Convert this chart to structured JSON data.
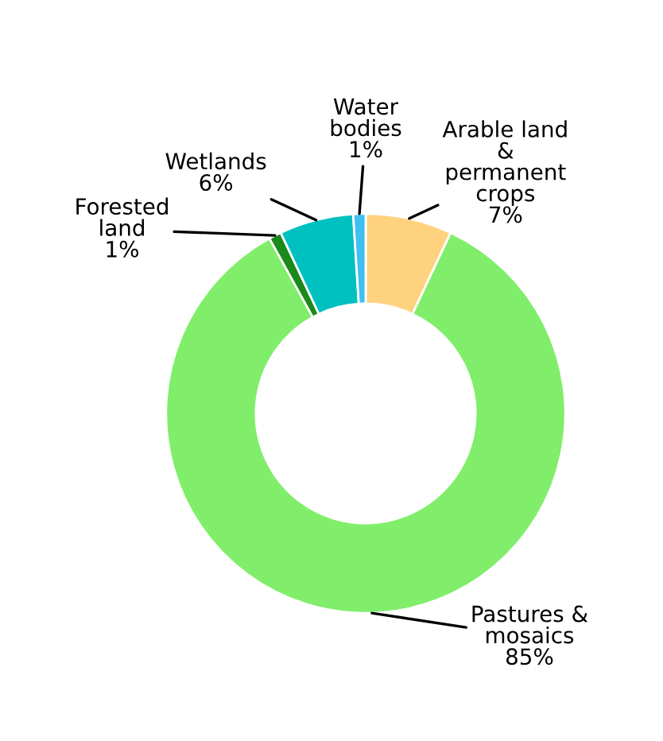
{
  "chart_data": {
    "type": "donut",
    "categories": [
      "Arable land\n&\npermanent\ncrops",
      "Pastures &\nmosaics",
      "Forested\nland",
      "Wetlands",
      "Water\nbodies"
    ],
    "values": [
      7,
      85,
      1,
      6,
      1
    ],
    "colors": [
      "#ffd280",
      "#80ee6a",
      "#1a8a1a",
      "#00c0c0",
      "#40c0f0"
    ],
    "value_labels": [
      "7%",
      "85%",
      "1%",
      "6%",
      "1%"
    ]
  }
}
